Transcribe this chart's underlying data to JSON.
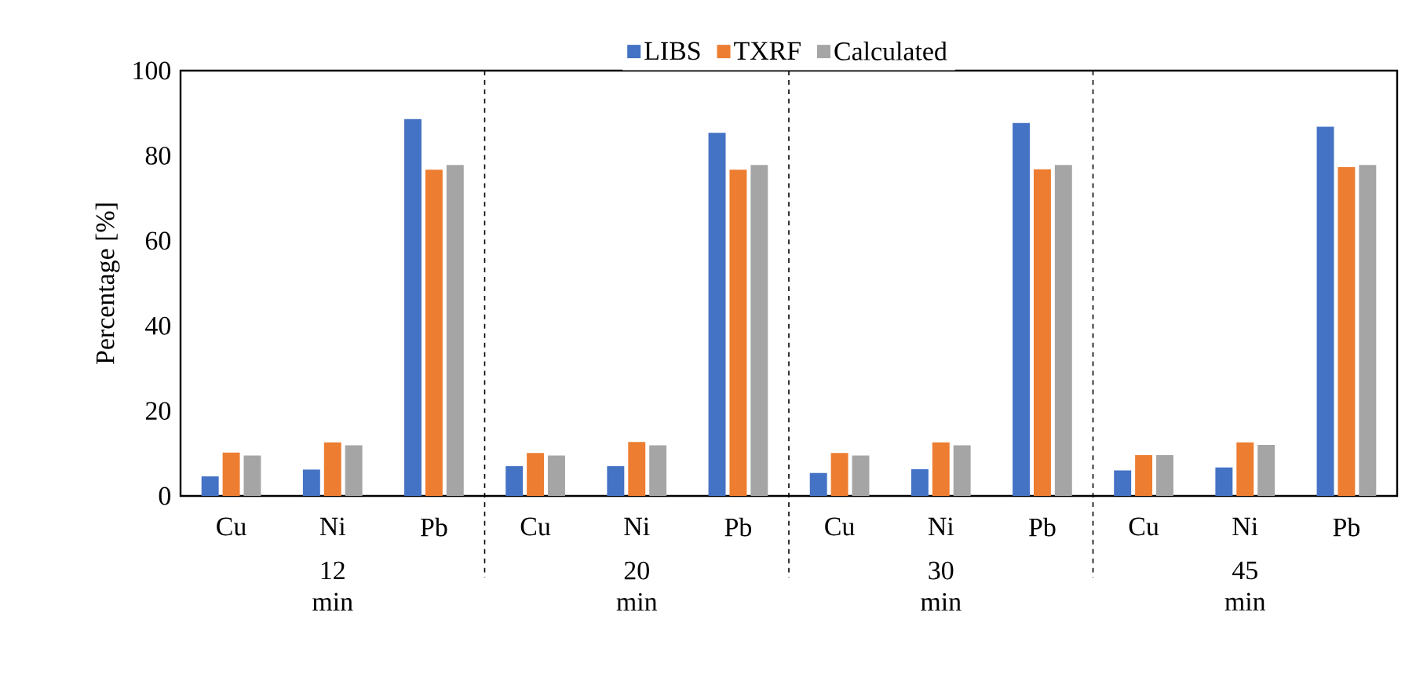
{
  "chart_data": {
    "type": "bar",
    "categories": [
      "Cu",
      "Ni",
      "Pb",
      "Cu",
      "Ni",
      "Pb",
      "Cu",
      "Ni",
      "Pb",
      "Cu",
      "Ni",
      "Pb"
    ],
    "series": [
      {
        "name": "LIBS",
        "color": "#4472c4",
        "values": [
          4.6,
          6.2,
          88.6,
          7.0,
          7.0,
          85.4,
          5.4,
          6.3,
          87.7,
          6.0,
          6.7,
          86.8
        ]
      },
      {
        "name": "TXRF",
        "color": "#ed7d31",
        "values": [
          10.2,
          12.6,
          76.7,
          10.1,
          12.7,
          76.7,
          10.1,
          12.6,
          76.8,
          9.6,
          12.6,
          77.3
        ]
      },
      {
        "name": "Calculated",
        "color": "#a5a5a5",
        "values": [
          9.5,
          11.9,
          77.8,
          9.5,
          11.9,
          77.8,
          9.5,
          11.9,
          77.8,
          9.6,
          12.0,
          77.8
        ]
      }
    ],
    "ylabel": "Percentage [%]",
    "ylim": [
      0,
      100
    ],
    "yticks": [
      0,
      20,
      40,
      60,
      80,
      100
    ],
    "annotations": [
      "12 min",
      "20 min",
      "30 min",
      "45 min"
    ],
    "grid": false,
    "legend": "top"
  }
}
